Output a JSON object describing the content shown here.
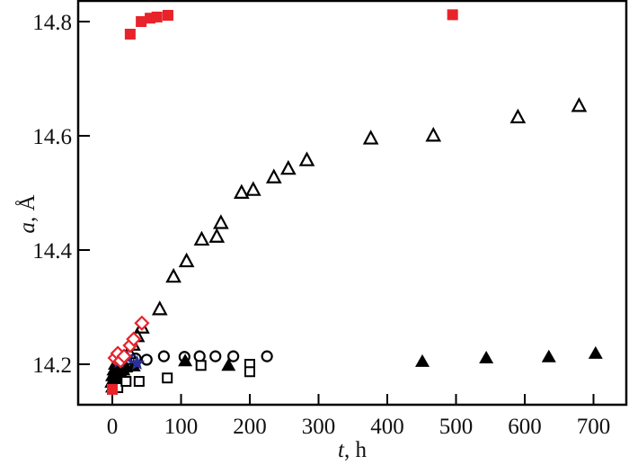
{
  "chart_data": {
    "type": "scatter",
    "title": "",
    "xlabel": "t, h",
    "xlabel_italic": "t",
    "xlabel_rest": ", h",
    "ylabel": "a, Å",
    "ylabel_italic": "a",
    "ylabel_rest": ", Å",
    "xlim": [
      -50,
      750
    ],
    "ylim": [
      14.12,
      14.838
    ],
    "x_ticks": [
      0,
      100,
      200,
      300,
      400,
      500,
      600,
      700
    ],
    "y_ticks": [
      14.2,
      14.4,
      14.6,
      14.8
    ],
    "x_tick_labels": [
      "0",
      "100",
      "200",
      "300",
      "400",
      "500",
      "600",
      "700"
    ],
    "y_tick_labels": [
      "14.2",
      "14.4",
      "14.6",
      "14.8"
    ],
    "grid": false,
    "legend": null,
    "series": [
      {
        "name": "red filled squares",
        "marker": "square-filled",
        "color": "#e8232a",
        "x": [
          0,
          26,
          42,
          55,
          65,
          81,
          495
        ],
        "y": [
          14.156,
          14.778,
          14.8,
          14.806,
          14.808,
          14.811,
          14.812
        ]
      },
      {
        "name": "open triangles",
        "marker": "triangle-open",
        "color": "#000000",
        "x": [
          0,
          5,
          10,
          15,
          20,
          25,
          30,
          36,
          43,
          69,
          89,
          108,
          130,
          152,
          158,
          188,
          205,
          235,
          256,
          283,
          376,
          467,
          590,
          679
        ],
        "y": [
          14.17,
          14.18,
          14.19,
          14.2,
          14.21,
          14.22,
          14.235,
          14.25,
          14.265,
          14.297,
          14.354,
          14.381,
          14.419,
          14.424,
          14.448,
          14.501,
          14.506,
          14.528,
          14.543,
          14.558,
          14.596,
          14.601,
          14.633,
          14.653
        ]
      },
      {
        "name": "filled triangles",
        "marker": "triangle-filled",
        "color": "#000000",
        "x": [
          0,
          0,
          0,
          2,
          4,
          6,
          8,
          12,
          16,
          20,
          31,
          106,
          169,
          451,
          544,
          635,
          703
        ],
        "y": [
          14.16,
          14.17,
          14.18,
          14.19,
          14.2,
          14.175,
          14.185,
          14.195,
          14.19,
          14.195,
          14.197,
          14.206,
          14.198,
          14.205,
          14.211,
          14.213,
          14.219
        ]
      },
      {
        "name": "open circles",
        "marker": "circle-open",
        "color": "#000000",
        "x": [
          34,
          50,
          75,
          105,
          127,
          150,
          176,
          225
        ],
        "y": [
          14.21,
          14.208,
          14.214,
          14.213,
          14.214,
          14.214,
          14.214,
          14.214
        ]
      },
      {
        "name": "open squares",
        "marker": "square-open",
        "color": "#000000",
        "x": [
          8,
          20,
          39,
          80,
          129,
          200,
          200
        ],
        "y": [
          14.159,
          14.17,
          14.17,
          14.176,
          14.198,
          14.2,
          14.187
        ]
      },
      {
        "name": "red open diamonds",
        "marker": "diamond-open",
        "color": "#e8232a",
        "x": [
          4,
          8,
          12,
          17,
          26,
          31,
          43
        ],
        "y": [
          14.211,
          14.219,
          14.206,
          14.214,
          14.233,
          14.244,
          14.272
        ]
      },
      {
        "name": "blue stars",
        "marker": "star",
        "color": "#2b2f9a",
        "x": [
          10,
          22,
          36
        ],
        "y": [
          14.205,
          14.212,
          14.202
        ]
      }
    ]
  }
}
